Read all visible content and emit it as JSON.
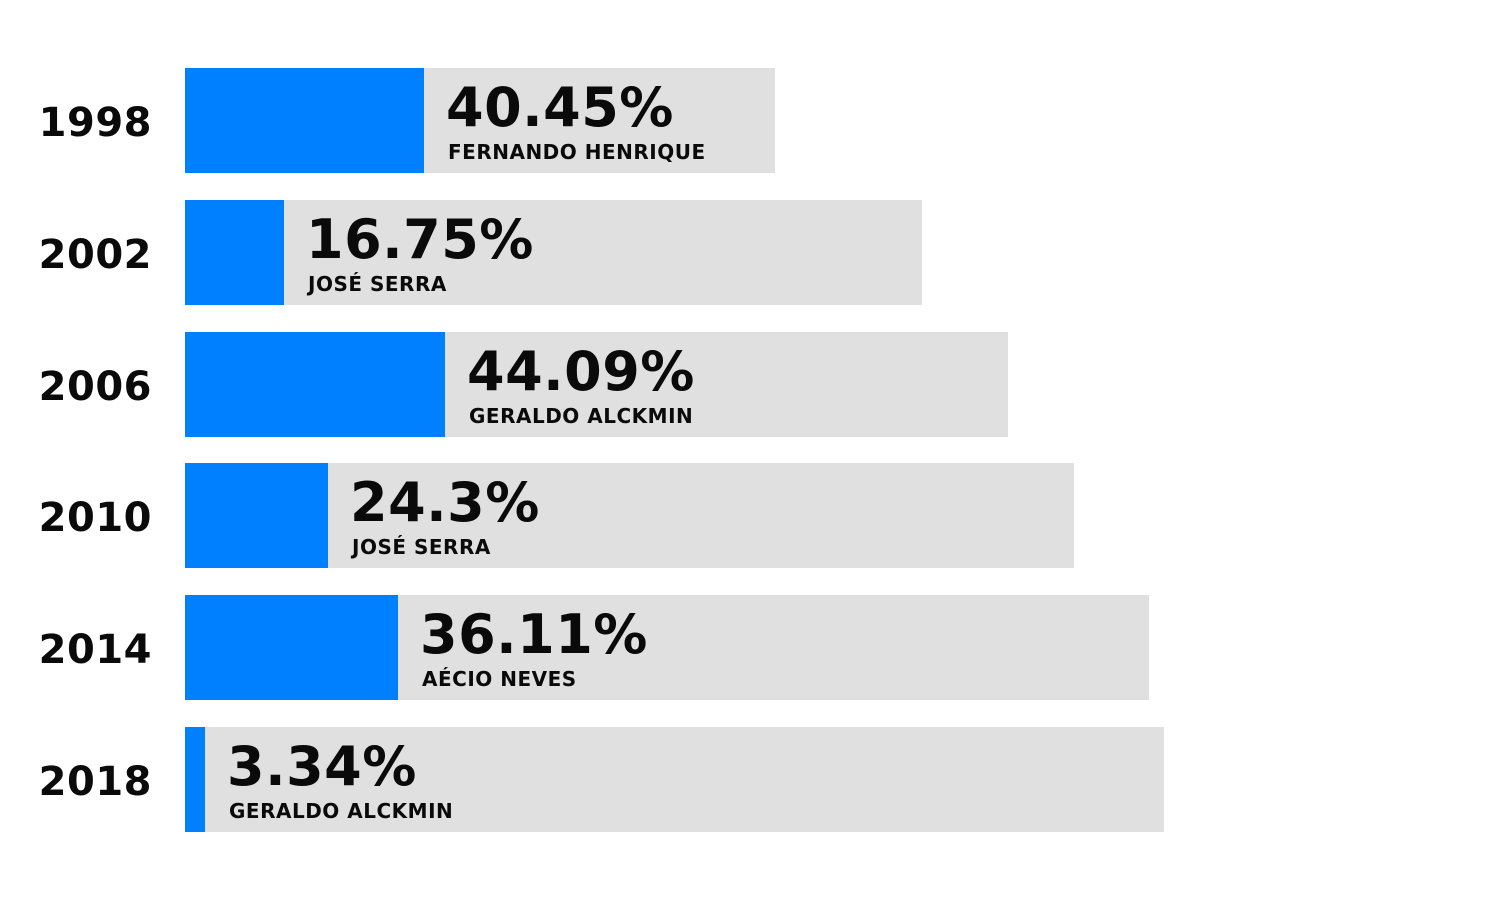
{
  "chart_data": {
    "type": "bar",
    "orientation": "horizontal",
    "categories": [
      "1998",
      "2002",
      "2006",
      "2010",
      "2014",
      "2018"
    ],
    "values": [
      40.45,
      16.75,
      44.09,
      24.3,
      36.11,
      3.34
    ],
    "value_labels": [
      "40.45%",
      "16.75%",
      "44.09%",
      "24.3%",
      "36.11%",
      "3.34%"
    ],
    "candidates": [
      "FERNANDO HENRIQUE",
      "JOSÉ SERRA",
      "GERALDO ALCKMIN",
      "JOSÉ SERRA",
      "AÉCIO NEVES",
      "GERALDO ALCKMIN"
    ],
    "unit": "%",
    "title": "",
    "xlabel": "",
    "ylabel": "",
    "grid": false,
    "legend": "none"
  },
  "colors": {
    "bar_fill": "#0080ff",
    "bar_track": "#e0e0e0",
    "text": "#0a0a0a",
    "background": "#ffffff"
  }
}
